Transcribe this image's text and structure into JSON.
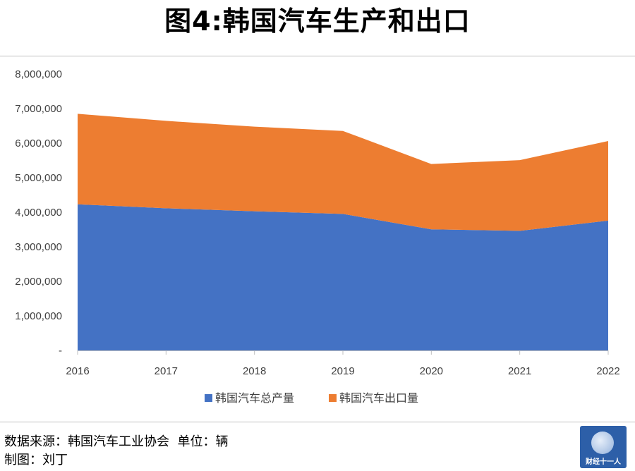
{
  "chart_data": {
    "type": "area",
    "stacked": true,
    "title": "图4:韩国汽车生产和出口",
    "categories": [
      "2016",
      "2017",
      "2018",
      "2019",
      "2020",
      "2021",
      "2022"
    ],
    "series": [
      {
        "name": "韩国汽车总产量",
        "color": "#4472c4",
        "values": [
          4228000,
          4115000,
          4029000,
          3951000,
          3507000,
          3462000,
          3757000
        ]
      },
      {
        "name": "韩国汽车出口量",
        "color": "#ed7d31",
        "values": [
          2622000,
          2530000,
          2449000,
          2402000,
          1889000,
          2046000,
          2305000
        ]
      }
    ],
    "ylim": [
      0,
      8000000
    ],
    "yticks": [
      "-",
      "1,000,000",
      "2,000,000",
      "3,000,000",
      "4,000,000",
      "5,000,000",
      "6,000,000",
      "7,000,000",
      "8,000,000"
    ],
    "legend_position": "bottom",
    "grid": false
  },
  "footer": {
    "source_line": "数据来源：韩国汽车工业协会  单位：辆",
    "author_line": "制图：刘丁"
  },
  "logo": {
    "brand_text": "财经十一人"
  }
}
